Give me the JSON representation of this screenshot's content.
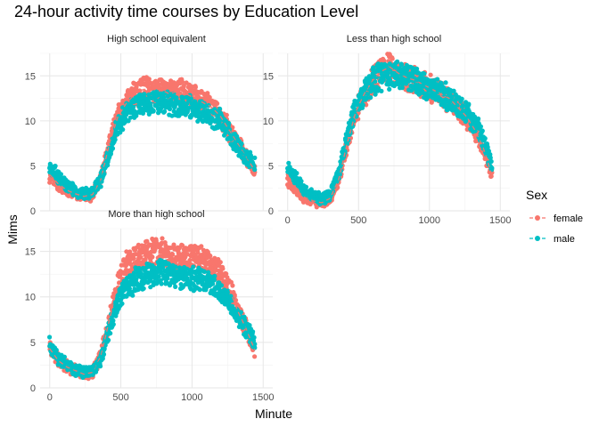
{
  "chart_data": {
    "type": "scatter",
    "title": "24-hour activity time courses by Education Level",
    "xlabel": "Minute",
    "ylabel": "Mims",
    "xlim": [
      0,
      1500
    ],
    "ylim": [
      0,
      17.5
    ],
    "x_ticks": [
      0,
      500,
      1000,
      1500
    ],
    "y_ticks": [
      0,
      5,
      10,
      15
    ],
    "grid": true,
    "legend": {
      "title": "Sex",
      "placement": "right"
    },
    "series": [
      {
        "name": "female",
        "color": "#F8766D"
      },
      {
        "name": "male",
        "color": "#00BFC4"
      }
    ],
    "facets": [
      {
        "label": "High school equivalent",
        "female": {
          "x": [
            0,
            60,
            120,
            180,
            240,
            300,
            360,
            420,
            480,
            540,
            600,
            660,
            720,
            780,
            840,
            900,
            960,
            1020,
            1080,
            1140,
            1200,
            1260,
            1320,
            1380,
            1440
          ],
          "y": [
            4.0,
            3.0,
            2.3,
            1.9,
            1.6,
            1.8,
            3.5,
            7.5,
            10.5,
            12.0,
            13.0,
            13.5,
            13.5,
            13.5,
            13.0,
            13.3,
            13.0,
            12.5,
            12.0,
            11.5,
            10.5,
            9.0,
            7.5,
            6.0,
            4.5
          ]
        },
        "male": {
          "x": [
            0,
            60,
            120,
            180,
            240,
            300,
            360,
            420,
            480,
            540,
            600,
            660,
            720,
            780,
            840,
            900,
            960,
            1020,
            1080,
            1140,
            1200,
            1260,
            1320,
            1380,
            1440
          ],
          "y": [
            5.0,
            3.8,
            2.8,
            2.2,
            1.9,
            2.0,
            3.5,
            6.5,
            9.5,
            11.0,
            11.7,
            12.0,
            12.0,
            12.0,
            12.0,
            11.5,
            11.7,
            11.5,
            11.0,
            10.5,
            10.0,
            8.8,
            7.3,
            6.0,
            5.0
          ]
        }
      },
      {
        "label": "Less than high school",
        "female": {
          "x": [
            0,
            60,
            120,
            180,
            240,
            300,
            360,
            420,
            480,
            540,
            600,
            660,
            720,
            780,
            840,
            900,
            960,
            1020,
            1080,
            1140,
            1200,
            1260,
            1320,
            1380,
            1440
          ],
          "y": [
            3.5,
            2.3,
            1.5,
            1.1,
            0.9,
            1.4,
            3.5,
            7.5,
            11.0,
            13.0,
            14.5,
            15.5,
            16.0,
            15.3,
            14.8,
            14.5,
            14.0,
            13.5,
            13.0,
            12.5,
            11.5,
            10.5,
            9.0,
            7.0,
            4.0
          ]
        },
        "male": {
          "x": [
            0,
            60,
            120,
            180,
            240,
            300,
            360,
            420,
            480,
            540,
            600,
            660,
            720,
            780,
            840,
            900,
            960,
            1020,
            1080,
            1140,
            1200,
            1260,
            1320,
            1380,
            1440
          ],
          "y": [
            4.8,
            3.5,
            2.3,
            1.6,
            1.3,
            1.8,
            4.2,
            8.5,
            11.5,
            13.3,
            14.3,
            15.0,
            15.0,
            15.2,
            15.0,
            14.5,
            14.0,
            13.5,
            13.2,
            12.5,
            11.8,
            11.0,
            9.8,
            8.0,
            5.0
          ]
        }
      },
      {
        "label": "More than high school",
        "female": {
          "x": [
            0,
            60,
            120,
            180,
            240,
            300,
            360,
            420,
            480,
            540,
            600,
            660,
            720,
            780,
            840,
            900,
            960,
            1020,
            1080,
            1140,
            1200,
            1260,
            1320,
            1380,
            1440
          ],
          "y": [
            4.3,
            3.0,
            2.3,
            1.9,
            1.5,
            1.7,
            3.5,
            7.5,
            11.5,
            13.5,
            14.2,
            14.5,
            14.8,
            14.8,
            14.5,
            14.5,
            14.3,
            14.5,
            14.3,
            13.5,
            12.5,
            11.0,
            8.5,
            6.5,
            4.2
          ]
        },
        "male": {
          "x": [
            0,
            60,
            120,
            180,
            240,
            300,
            360,
            420,
            480,
            540,
            600,
            660,
            720,
            780,
            840,
            900,
            960,
            1020,
            1080,
            1140,
            1200,
            1260,
            1320,
            1380,
            1440
          ],
          "y": [
            4.8,
            3.3,
            2.5,
            2.0,
            1.7,
            1.9,
            3.2,
            6.5,
            9.5,
            11.0,
            11.8,
            12.3,
            12.5,
            12.8,
            12.5,
            12.3,
            12.0,
            12.0,
            11.7,
            11.5,
            10.5,
            9.5,
            8.0,
            6.5,
            5.0
          ]
        }
      }
    ]
  }
}
